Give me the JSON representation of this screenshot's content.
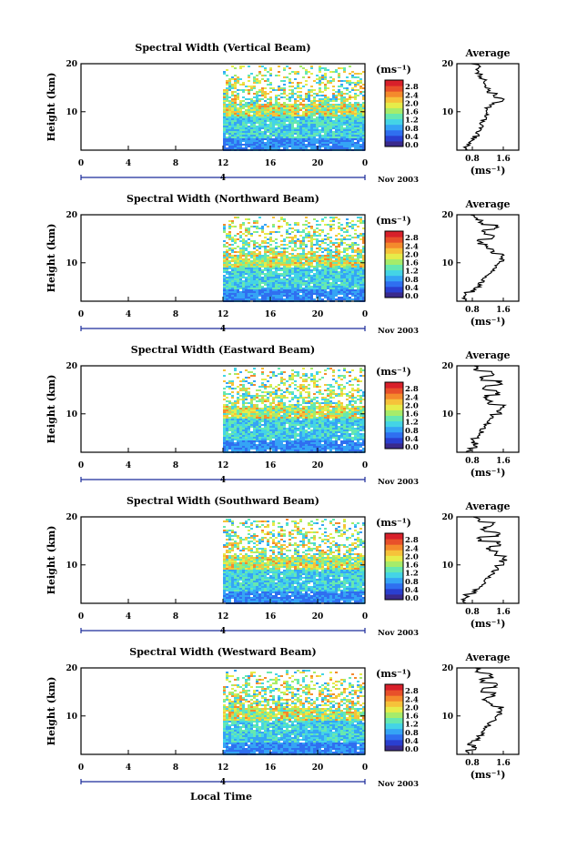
{
  "panel_titles": [
    "Spectral Width (Vertical Beam)",
    "Spectral Width (Northward Beam)",
    "Spectral Width (Eastward Beam)",
    "Spectral Width (Southward Beam)",
    "Spectral Width (Westward Beam)"
  ],
  "y_label": "Height (km)",
  "x_label": "Local Time",
  "date_label": "Nov 2003",
  "day_label": "4",
  "avg_title": "Average",
  "units_label": "(ms⁻¹)",
  "colors": {
    "scale": [
      "#3a2a8c",
      "#2a3fd0",
      "#2f6ff0",
      "#35a4f5",
      "#44d4e6",
      "#66e8b0",
      "#a6ec6a",
      "#e6ec4a",
      "#f6c23a",
      "#f48a2c",
      "#e8502a",
      "#d8202a"
    ]
  },
  "chart_data": [
    {
      "type": "heatmap",
      "beam": "Vertical",
      "title": "Spectral Width (Vertical Beam)",
      "xlabel": "",
      "ylabel": "Height (km)",
      "x_ticks": [
        "0",
        "4",
        "8",
        "12",
        "16",
        "20",
        "0"
      ],
      "xlim": [
        0,
        24
      ],
      "ylim": [
        2,
        20
      ],
      "y_ticks": [
        "10",
        "20"
      ],
      "colorbar_ticks": [
        "0.0",
        "0.4",
        "0.8",
        "1.2",
        "1.6",
        "2.0",
        "2.4",
        "2.8"
      ],
      "data_start_hour": 12,
      "avg_profile": {
        "title": "Average",
        "x_ticks": [
          "0.8",
          "1.6"
        ],
        "xlabel": "(ms⁻¹)",
        "height": [
          2,
          3,
          4,
          5,
          6,
          7,
          8,
          9,
          10,
          11,
          12,
          13,
          14,
          15,
          16,
          17,
          18,
          19,
          20
        ],
        "value": [
          0.65,
          0.7,
          0.85,
          0.95,
          1.0,
          1.05,
          1.1,
          1.15,
          1.2,
          1.3,
          1.55,
          1.4,
          1.25,
          1.15,
          1.1,
          1.0,
          0.95,
          1.0,
          0.85
        ]
      }
    },
    {
      "type": "heatmap",
      "beam": "Northward",
      "title": "Spectral Width (Northward Beam)",
      "xlabel": "",
      "ylabel": "Height (km)",
      "x_ticks": [
        "0",
        "4",
        "8",
        "12",
        "16",
        "20",
        "0"
      ],
      "xlim": [
        0,
        24
      ],
      "ylim": [
        2,
        20
      ],
      "y_ticks": [
        "10",
        "20"
      ],
      "colorbar_ticks": [
        "0.0",
        "0.4",
        "0.8",
        "1.2",
        "1.6",
        "2.0",
        "2.4",
        "2.8"
      ],
      "data_start_hour": 12,
      "avg_profile": {
        "title": "Average",
        "x_ticks": [
          "0.8",
          "1.6"
        ],
        "xlabel": "(ms⁻¹)",
        "height": [
          2,
          3,
          4,
          5,
          6,
          7,
          8,
          9,
          10,
          11,
          12,
          13,
          14,
          15,
          16,
          17,
          18,
          19,
          20
        ],
        "value": [
          0.6,
          0.65,
          0.85,
          1.0,
          1.1,
          1.2,
          1.3,
          1.4,
          1.55,
          1.6,
          1.3,
          1.2,
          1.0,
          1.3,
          1.1,
          1.4,
          1.0,
          0.9,
          0.8
        ]
      }
    },
    {
      "type": "heatmap",
      "beam": "Eastward",
      "title": "Spectral Width (Eastward Beam)",
      "xlabel": "",
      "ylabel": "Height (km)",
      "x_ticks": [
        "0",
        "4",
        "8",
        "12",
        "16",
        "20",
        "0"
      ],
      "xlim": [
        0,
        24
      ],
      "ylim": [
        2,
        20
      ],
      "y_ticks": [
        "10",
        "20"
      ],
      "colorbar_ticks": [
        "0.0",
        "0.4",
        "0.8",
        "1.2",
        "1.6",
        "2.0",
        "2.4",
        "2.8"
      ],
      "data_start_hour": 12,
      "avg_profile": {
        "title": "Average",
        "x_ticks": [
          "0.8",
          "1.6"
        ],
        "xlabel": "(ms⁻¹)",
        "height": [
          2,
          3,
          4,
          5,
          6,
          7,
          8,
          9,
          10,
          11,
          12,
          13,
          14,
          15,
          16,
          17,
          18,
          19,
          20
        ],
        "value": [
          0.7,
          0.9,
          0.8,
          1.0,
          1.05,
          1.1,
          1.2,
          1.3,
          1.5,
          1.6,
          1.25,
          1.15,
          1.45,
          1.1,
          1.5,
          1.05,
          1.3,
          0.9,
          0.8
        ]
      }
    },
    {
      "type": "heatmap",
      "beam": "Southward",
      "title": "Spectral Width (Southward Beam)",
      "xlabel": "",
      "ylabel": "Height (km)",
      "x_ticks": [
        "0",
        "4",
        "8",
        "12",
        "16",
        "20",
        "0"
      ],
      "xlim": [
        0,
        24
      ],
      "ylim": [
        2,
        20
      ],
      "y_ticks": [
        "10",
        "20"
      ],
      "colorbar_ticks": [
        "0.0",
        "0.4",
        "0.8",
        "1.2",
        "1.6",
        "2.0",
        "2.4",
        "2.8"
      ],
      "data_start_hour": 12,
      "avg_profile": {
        "title": "Average",
        "x_ticks": [
          "0.8",
          "1.6"
        ],
        "xlabel": "(ms⁻¹)",
        "height": [
          2,
          3,
          4,
          5,
          6,
          7,
          8,
          9,
          10,
          11,
          12,
          13,
          14,
          15,
          16,
          17,
          18,
          19,
          20
        ],
        "value": [
          0.6,
          0.65,
          0.85,
          1.0,
          1.1,
          1.2,
          1.35,
          1.45,
          1.55,
          1.65,
          1.4,
          1.2,
          1.5,
          1.0,
          1.45,
          1.1,
          1.3,
          0.95,
          0.85
        ]
      }
    },
    {
      "type": "heatmap",
      "beam": "Westward",
      "title": "Spectral Width (Westward Beam)",
      "xlabel": "Local Time",
      "ylabel": "Height (km)",
      "x_ticks": [
        "0",
        "4",
        "8",
        "12",
        "16",
        "20",
        "0"
      ],
      "xlim": [
        0,
        24
      ],
      "ylim": [
        2,
        20
      ],
      "y_ticks": [
        "10",
        "20"
      ],
      "colorbar_ticks": [
        "0.0",
        "0.4",
        "0.8",
        "1.2",
        "1.6",
        "2.0",
        "2.4",
        "2.8"
      ],
      "data_start_hour": 12,
      "avg_profile": {
        "title": "Average",
        "x_ticks": [
          "0.8",
          "1.6"
        ],
        "xlabel": "(ms⁻¹)",
        "height": [
          2,
          3,
          4,
          5,
          6,
          7,
          8,
          9,
          10,
          11,
          12,
          13,
          14,
          15,
          16,
          17,
          18,
          19,
          20
        ],
        "value": [
          0.7,
          0.85,
          0.75,
          0.95,
          1.05,
          1.15,
          1.25,
          1.35,
          1.5,
          1.55,
          1.3,
          1.1,
          1.35,
          1.05,
          1.4,
          1.05,
          1.3,
          0.95,
          0.9
        ]
      }
    }
  ]
}
